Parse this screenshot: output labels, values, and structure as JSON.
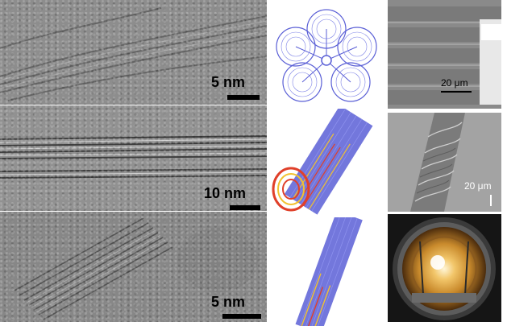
{
  "panels": {
    "tem_top": {
      "scale_label": "5 nm"
    },
    "tem_middle": {
      "scale_label": "10 nm"
    },
    "tem_bottom": {
      "scale_label": "5 nm"
    },
    "sem_top": {
      "scale_label": "20 μm"
    },
    "sem_middle": {
      "scale_label": "20 μm"
    }
  },
  "colors": {
    "tem_gray": "#8e8e8e",
    "model_blue": "#5a5fd6",
    "model_red": "#e0402a",
    "model_yellow": "#f2c230",
    "sem_gray": "#9a9a9a",
    "chamber_gold": "#c98a2c"
  }
}
